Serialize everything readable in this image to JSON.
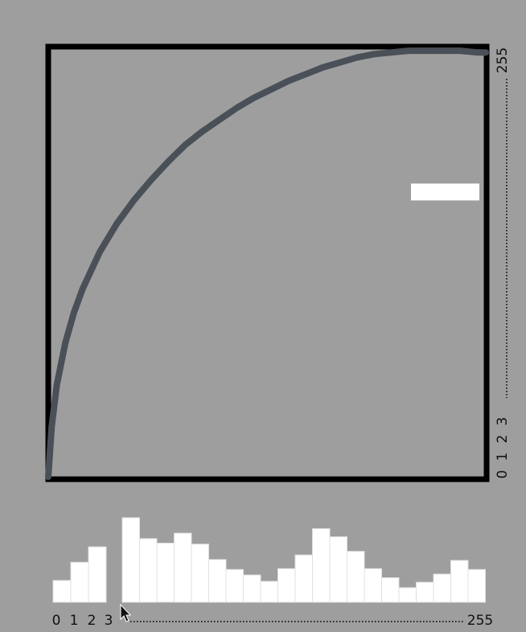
{
  "colors": {
    "background": "#9e9e9e",
    "frame": "#000000",
    "curve": "#4a5057",
    "bars": "#ffffff",
    "marker": "#ffffff"
  },
  "chart_data": [
    {
      "type": "line",
      "title": "",
      "xlabel": "",
      "ylabel": "",
      "xlim": [
        0,
        255
      ],
      "ylim": [
        0,
        255
      ],
      "grid": false,
      "y_tick_labels": [
        "0",
        "1",
        "2",
        "3",
        "255"
      ],
      "x": [
        0,
        2,
        5,
        10,
        15,
        20,
        30,
        40,
        50,
        60,
        70,
        80,
        90,
        100,
        110,
        120,
        130,
        140,
        150,
        160,
        170,
        180,
        190,
        200,
        210,
        220,
        230,
        240,
        250,
        255
      ],
      "y": [
        0,
        30,
        55,
        80,
        98,
        112,
        134,
        151,
        165,
        177,
        188,
        198,
        206,
        213,
        220,
        226,
        231,
        236,
        240,
        244,
        247,
        250,
        252,
        253,
        254,
        254,
        254,
        254,
        253,
        253
      ],
      "marker_y": 170
    },
    {
      "type": "bar",
      "title": "",
      "xlabel": "",
      "ylabel": "",
      "x_tick_labels": [
        "0",
        "1",
        "2",
        "3",
        "255"
      ],
      "ylim": [
        0,
        100
      ],
      "group1": [
        24,
        44,
        61
      ],
      "group2": [
        93,
        70,
        65,
        76,
        64,
        47,
        36,
        30,
        23,
        37,
        52,
        81,
        72,
        56,
        37,
        27,
        16,
        22,
        31,
        46,
        36
      ]
    }
  ]
}
